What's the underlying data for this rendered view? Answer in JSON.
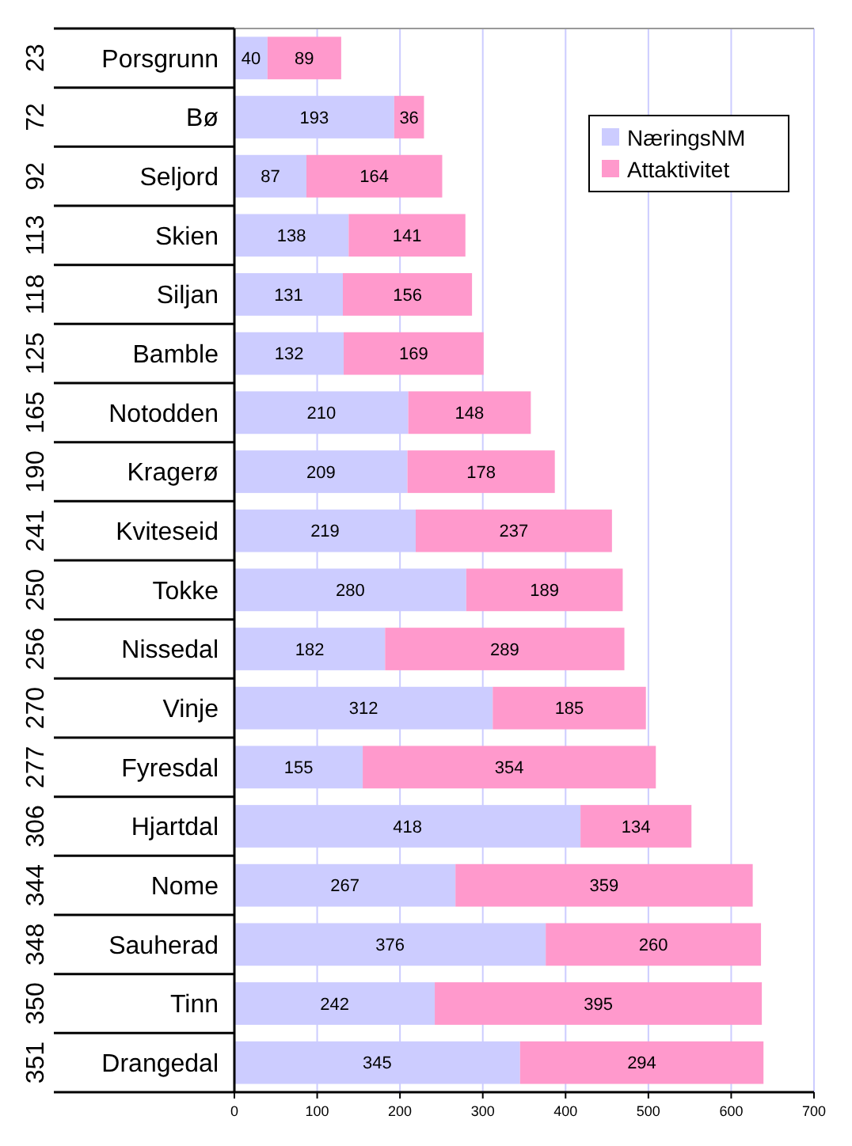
{
  "chart_data": {
    "type": "bar",
    "orientation": "horizontal",
    "stacked": true,
    "categories": [
      "Porsgrunn",
      "Bø",
      "Seljord",
      "Skien",
      "Siljan",
      "Bamble",
      "Notodden",
      "Kragerø",
      "Kviteseid",
      "Tokke",
      "Nissedal",
      "Vinje",
      "Fyresdal",
      "Hjartdal",
      "Nome",
      "Sauherad",
      "Tinn",
      "Drangedal"
    ],
    "series": [
      {
        "name": "NæringsNM",
        "color": "#ccccff",
        "values": [
          40,
          193,
          87,
          138,
          131,
          132,
          210,
          209,
          219,
          280,
          182,
          312,
          155,
          418,
          267,
          376,
          242,
          345
        ]
      },
      {
        "name": "Attaktivitet",
        "color": "#ff99cc",
        "values": [
          89,
          36,
          164,
          141,
          156,
          169,
          148,
          178,
          237,
          189,
          289,
          185,
          354,
          134,
          359,
          260,
          395,
          294
        ]
      }
    ],
    "xlim": [
      0,
      700
    ],
    "xticks": [
      0,
      100,
      200,
      300,
      400,
      500,
      600,
      700
    ],
    "grid": "x",
    "legend": "top right",
    "data_labels": true,
    "annotations": [
      "23",
      "72",
      "92",
      "113",
      "118",
      "125",
      "165",
      "190",
      "241",
      "250",
      "256",
      "270",
      "277",
      "306",
      "344",
      "348",
      "350",
      "351"
    ]
  }
}
